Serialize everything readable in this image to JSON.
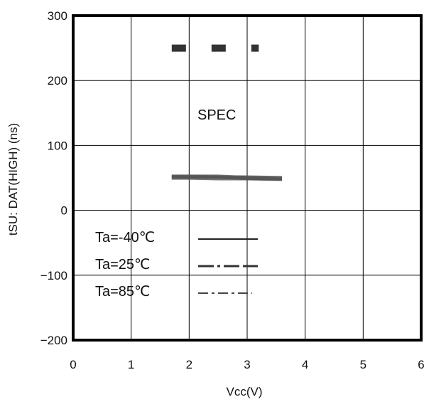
{
  "chart_data": {
    "type": "line",
    "title": "",
    "xlabel": "Vcc(V)",
    "ylabel": "tSU: DAT(HIGH) (ns)",
    "xlim": [
      0,
      6
    ],
    "ylim": [
      -200,
      300
    ],
    "x_ticks": [
      "0",
      "1",
      "2",
      "3",
      "4",
      "5",
      "6"
    ],
    "y_ticks": [
      "300",
      "200",
      "100",
      "0",
      "-100",
      "-200"
    ],
    "x_tick_values": [
      0,
      1,
      2,
      3,
      4,
      5,
      6
    ],
    "y_tick_values": [
      300,
      200,
      100,
      0,
      -100,
      -200
    ],
    "grid": true,
    "annotation": "SPEC",
    "spec_line": {
      "x": [
        1.7,
        3.2
      ],
      "y": [
        250,
        250
      ]
    },
    "series": [
      {
        "name": "Ta=-40℃",
        "x": [
          1.7,
          2.0,
          2.5,
          3.0,
          3.6
        ],
        "y": [
          51,
          51,
          50,
          50,
          49
        ]
      },
      {
        "name": "Ta=25℃",
        "x": [
          1.7,
          2.0,
          2.5,
          3.0,
          3.6
        ],
        "y": [
          52,
          52,
          52,
          50,
          49
        ]
      },
      {
        "name": "Ta=85℃",
        "x": [
          1.7,
          2.0,
          2.5,
          3.0,
          3.6
        ],
        "y": [
          51,
          51,
          51,
          49,
          48
        ]
      }
    ],
    "legend_position": "bottom-left"
  }
}
